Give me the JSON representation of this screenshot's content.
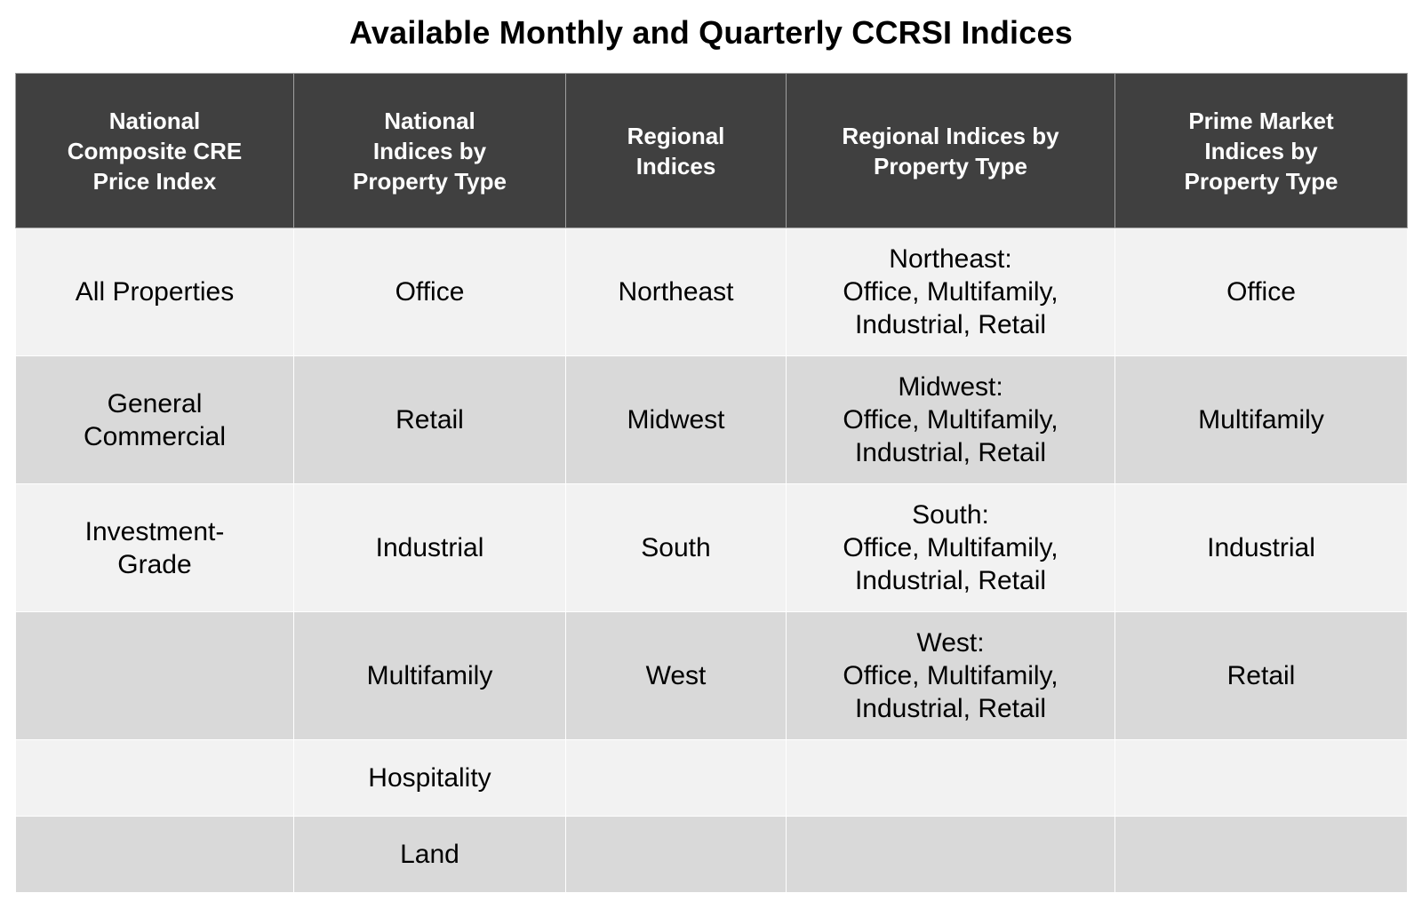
{
  "title": "Available Monthly and Quarterly CCRSI Indices",
  "chart_data": {
    "type": "table",
    "title": "Available Monthly and Quarterly CCRSI Indices",
    "columns": [
      "National Composite CRE Price Index",
      "National Indices by Property Type",
      "Regional Indices",
      "Regional Indices by Property Type",
      "Prime Market Indices by Property Type"
    ],
    "header_lines": [
      [
        "National",
        "Composite CRE",
        "Price Index"
      ],
      [
        "National",
        "Indices by",
        "Property Type"
      ],
      [
        "Regional",
        "Indices"
      ],
      [
        "Regional Indices by",
        "Property Type"
      ],
      [
        "Prime Market",
        "Indices by",
        "Property Type"
      ]
    ],
    "rows": [
      [
        [
          "All Properties"
        ],
        [
          "Office"
        ],
        [
          "Northeast"
        ],
        [
          "Northeast:",
          "Office, Multifamily,",
          "Industrial, Retail"
        ],
        [
          "Office"
        ]
      ],
      [
        [
          "General",
          "Commercial"
        ],
        [
          "Retail"
        ],
        [
          "Midwest"
        ],
        [
          "Midwest:",
          "Office, Multifamily,",
          "Industrial, Retail"
        ],
        [
          "Multifamily"
        ]
      ],
      [
        [
          "Investment-",
          "Grade"
        ],
        [
          "Industrial"
        ],
        [
          "South"
        ],
        [
          "South:",
          "Office, Multifamily,",
          "Industrial, Retail"
        ],
        [
          "Industrial"
        ]
      ],
      [
        [],
        [
          "Multifamily"
        ],
        [
          "West"
        ],
        [
          "West:",
          "Office, Multifamily,",
          "Industrial, Retail"
        ],
        [
          "Retail"
        ]
      ],
      [
        [],
        [
          "Hospitality"
        ],
        [],
        [],
        []
      ],
      [
        [],
        [
          "Land"
        ],
        [],
        [],
        []
      ]
    ]
  },
  "colors": {
    "header_bg": "#404040",
    "header_text": "#ffffff",
    "row_light": "#f2f2f2",
    "row_dark": "#d9d9d9"
  }
}
